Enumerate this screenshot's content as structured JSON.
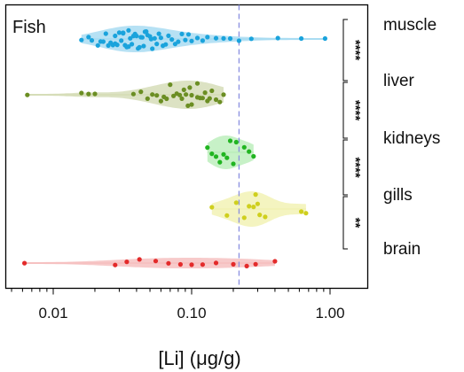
{
  "chart_data": {
    "type": "violin-strip",
    "title": "Fish",
    "xlabel": "[Li] (μg/g)",
    "x_scale": "log",
    "xlim": [
      0.006,
      1.5
    ],
    "x_ticks": [
      0.01,
      0.1,
      1.0
    ],
    "x_tick_labels": [
      "0.01",
      "0.10",
      "1.00"
    ],
    "reference_line_x": 0.22,
    "categories": [
      "muscle",
      "liver",
      "kidneys",
      "gills",
      "brain"
    ],
    "series": [
      {
        "name": "muscle",
        "color": "#1aa3dc",
        "fill": "#a9dcf2",
        "values": [
          0.016,
          0.018,
          0.019,
          0.021,
          0.022,
          0.023,
          0.024,
          0.025,
          0.026,
          0.027,
          0.028,
          0.028,
          0.029,
          0.03,
          0.031,
          0.032,
          0.032,
          0.033,
          0.034,
          0.035,
          0.035,
          0.036,
          0.037,
          0.038,
          0.039,
          0.04,
          0.041,
          0.042,
          0.043,
          0.044,
          0.045,
          0.046,
          0.047,
          0.048,
          0.05,
          0.051,
          0.052,
          0.054,
          0.056,
          0.058,
          0.06,
          0.062,
          0.065,
          0.068,
          0.072,
          0.076,
          0.08,
          0.085,
          0.09,
          0.095,
          0.1,
          0.11,
          0.12,
          0.13,
          0.15,
          0.17,
          0.19,
          0.22,
          0.27,
          0.42,
          0.62,
          0.92
        ]
      },
      {
        "name": "liver",
        "color": "#6b8e23",
        "fill": "#d6ddb8",
        "values": [
          0.0065,
          0.016,
          0.018,
          0.02,
          0.038,
          0.043,
          0.048,
          0.052,
          0.056,
          0.06,
          0.063,
          0.066,
          0.07,
          0.074,
          0.078,
          0.082,
          0.085,
          0.088,
          0.091,
          0.094,
          0.097,
          0.1,
          0.1,
          0.11,
          0.11,
          0.115,
          0.12,
          0.125,
          0.13,
          0.135,
          0.14,
          0.15,
          0.16,
          0.17
        ]
      },
      {
        "name": "kidneys",
        "color": "#21b521",
        "fill": "#bdeebd",
        "values": [
          0.13,
          0.14,
          0.15,
          0.16,
          0.17,
          0.18,
          0.19,
          0.2,
          0.21,
          0.24,
          0.26,
          0.28
        ]
      },
      {
        "name": "gills",
        "color": "#cfcf1e",
        "fill": "#f2f2b5",
        "values": [
          0.14,
          0.18,
          0.21,
          0.24,
          0.26,
          0.28,
          0.29,
          0.3,
          0.31,
          0.34,
          0.62,
          0.67
        ]
      },
      {
        "name": "brain",
        "color": "#e32b2b",
        "fill": "#f6c1c1",
        "values": [
          0.0062,
          0.028,
          0.034,
          0.042,
          0.055,
          0.068,
          0.083,
          0.1,
          0.12,
          0.15,
          0.2,
          0.25,
          0.29,
          0.4
        ]
      }
    ],
    "significance": [
      {
        "between": [
          "muscle",
          "liver"
        ],
        "label": "****"
      },
      {
        "between": [
          "liver",
          "kidneys"
        ],
        "label": "****"
      },
      {
        "between": [
          "kidneys",
          "gills"
        ],
        "label": "****"
      },
      {
        "between": [
          "gills",
          "brain"
        ],
        "label": "**"
      }
    ]
  }
}
